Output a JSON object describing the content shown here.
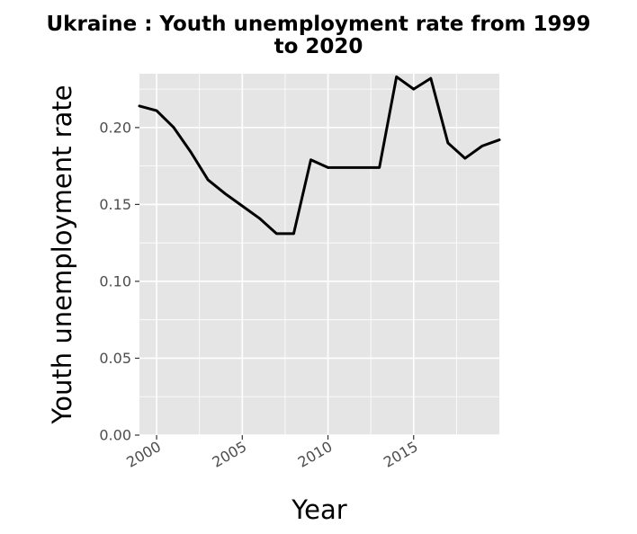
{
  "chart_data": {
    "type": "line",
    "title_line1": "Ukraine : Youth unemployment rate from 1999",
    "title_line2": "to 2020",
    "xlabel": "Year",
    "ylabel": "Youth unemployment rate",
    "x": [
      1999,
      2000,
      2001,
      2002,
      2003,
      2004,
      2005,
      2006,
      2007,
      2008,
      2009,
      2010,
      2011,
      2012,
      2013,
      2014,
      2015,
      2016,
      2017,
      2018,
      2019,
      2020
    ],
    "series": [
      {
        "values": [
          0.214,
          0.211,
          0.2,
          0.184,
          0.166,
          0.157,
          0.149,
          0.141,
          0.131,
          0.131,
          0.179,
          0.174,
          0.174,
          0.174,
          0.174,
          0.233,
          0.225,
          0.232,
          0.19,
          0.18,
          0.188,
          0.192
        ],
        "color": "#000000"
      }
    ],
    "xlim": [
      1999,
      2020
    ],
    "ylim": [
      0,
      0.235
    ],
    "xticks": [
      2000,
      2005,
      2010,
      2015
    ],
    "yticks": [
      0.0,
      0.05,
      0.1,
      0.15,
      0.2
    ],
    "ytick_labels": [
      "0.00",
      "0.05",
      "0.10",
      "0.15",
      "0.20"
    ],
    "grid": true,
    "panel_color": "#e5e5e5",
    "grid_color": "#ffffff"
  }
}
